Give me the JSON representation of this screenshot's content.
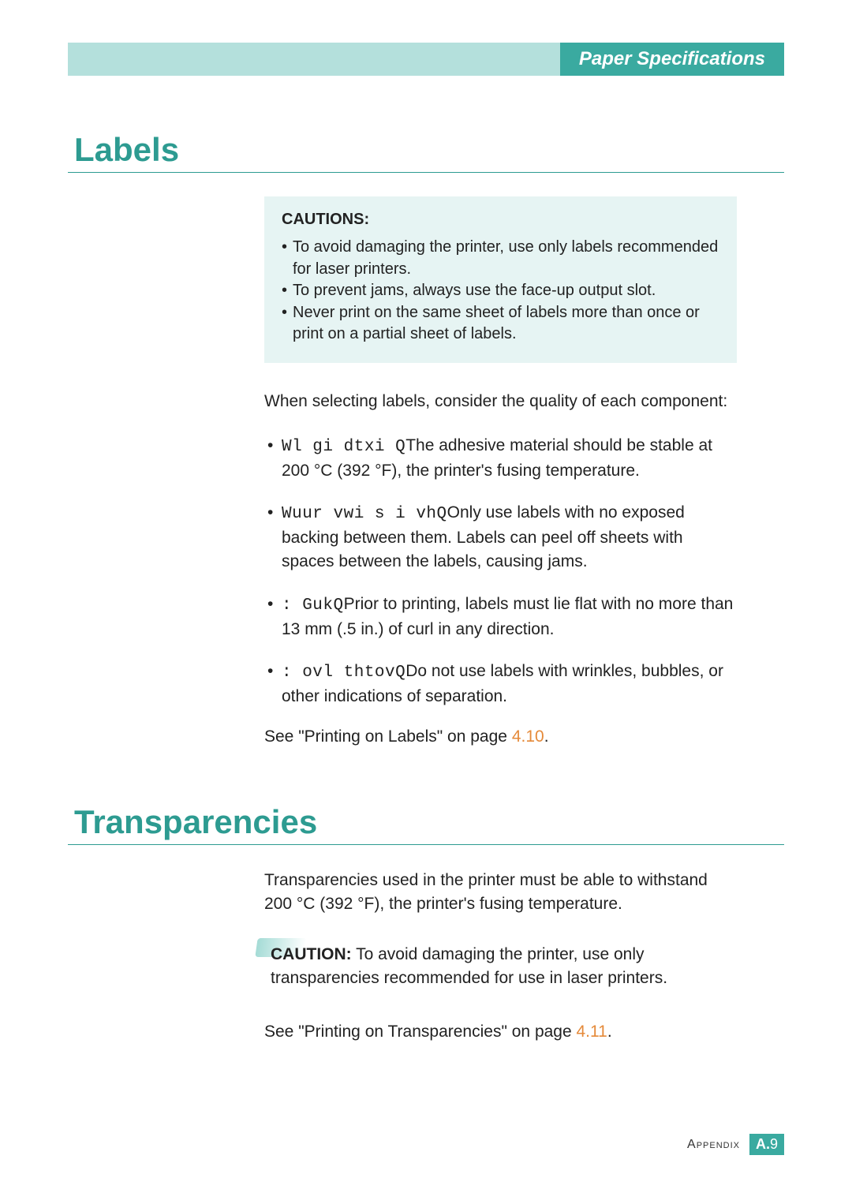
{
  "colors": {
    "teal": "#3aaaa0",
    "teal_light": "#b4e0dc",
    "caution_bg": "#e6f4f3",
    "link_orange": "#e58a3a",
    "text": "#222222",
    "white": "#ffffff"
  },
  "header": {
    "title": "Paper Specifications"
  },
  "sections": {
    "labels": {
      "heading": "Labels",
      "cautions_heading": "CAUTIONS:",
      "cautions": [
        "To avoid damaging the printer, use only labels recommended for laser printers.",
        "To prevent jams, always use the face-up output slot.",
        "Never print on the same sheet of labels more than once or print on a partial sheet of labels."
      ],
      "intro": "When selecting labels, consider the quality of each component:",
      "bullets": [
        {
          "lead": "Wl gi dtxi Q",
          "text": "The adhesive material should be stable at 200 °C (392 °F), the printer's fusing temperature."
        },
        {
          "lead": "Wuur vwi s i vhQ",
          "text": "Only use labels with no exposed backing between them. Labels can peel off sheets with spaces between the labels, causing jams."
        },
        {
          "lead": ": GukQ",
          "text": "Prior to printing, labels must lie flat with no more than 13 mm (.5 in.) of curl in any direction."
        },
        {
          "lead": ": ovl thtovQ",
          "text": "Do not use labels with wrinkles, bubbles, or other indications of separation."
        }
      ],
      "see_prefix": "See \"Printing on Labels\" on page ",
      "see_ref": "4.10",
      "see_suffix": "."
    },
    "transparencies": {
      "heading": "Transparencies",
      "intro": "Transparencies used in the printer must be able to withstand 200 °C (392 °F), the printer's fusing temperature.",
      "caution_label": "CAUTION:",
      "caution_text": " To avoid damaging the printer, use only transparencies recommended for use in laser printers.",
      "see_prefix": "See \"Printing on Transparencies\" on page ",
      "see_ref": "4.11",
      "see_suffix": "."
    }
  },
  "footer": {
    "label": "Appendix",
    "page_letter": "A.",
    "page_number": "9"
  }
}
